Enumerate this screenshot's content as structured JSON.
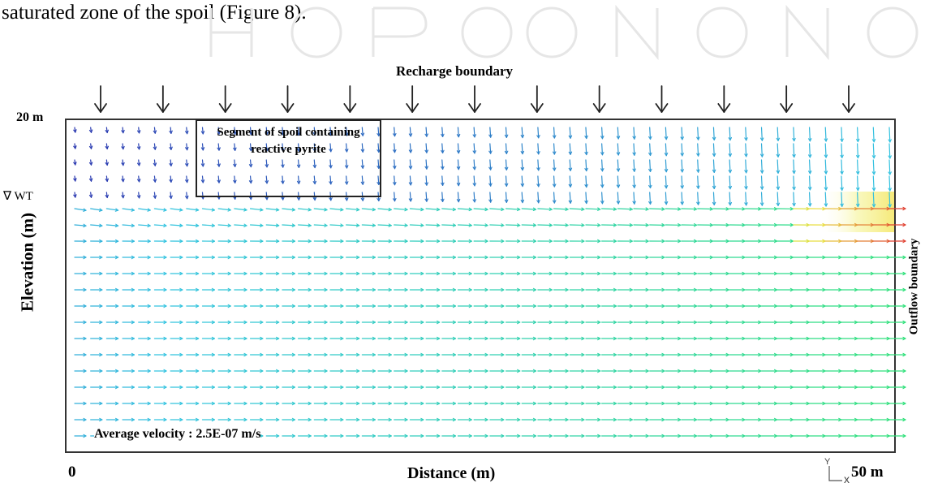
{
  "caption": {
    "text": "saturated zone of the spoil (Figure 8)."
  },
  "figure": {
    "recharge_label": "Recharge boundary",
    "outflow_label": "Outflow boundary",
    "y_axis_label": "Elevation (m)",
    "x_axis_label": "Distance (m)",
    "y_top_label": "20 m",
    "water_table_label": "∇ WT",
    "x_start_label": "0",
    "x_end_label": "50 m",
    "segment_label": "Segment of spoil containing reactive pyrite",
    "velocity_label": "Average velocity : 2.5E-07 m/s",
    "axes_indicator": {
      "y": "Y",
      "x": "x"
    },
    "recharge_arrow_count": 13,
    "colors": {
      "slow": "#2b39b0",
      "mid": "#33c3e0",
      "fast": "#2ee07a",
      "peak": "#e8e040",
      "hot": "#e04030",
      "frame": "#333333"
    }
  }
}
